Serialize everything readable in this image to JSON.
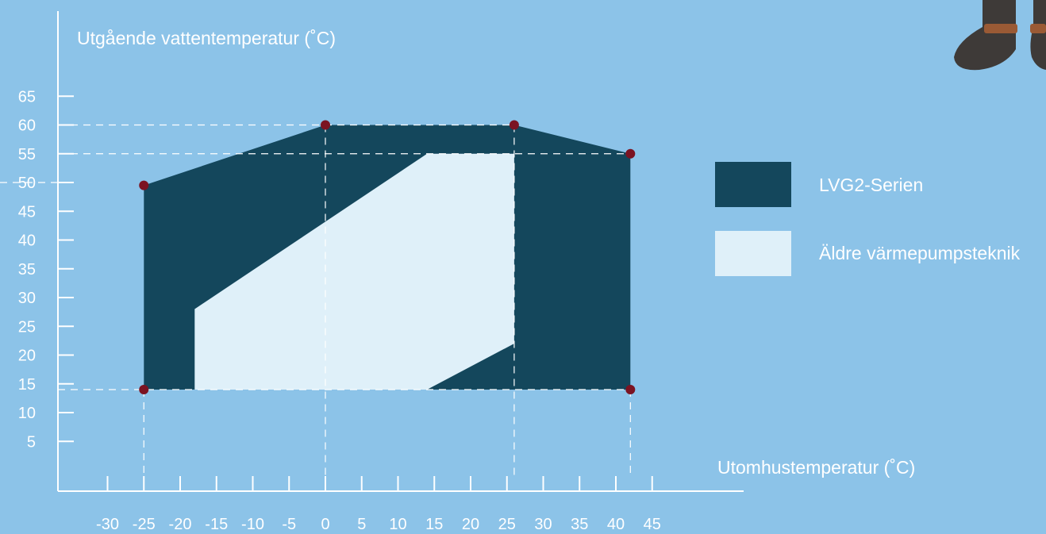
{
  "colors": {
    "background": "#8cc3e8",
    "envelope_new": "#14475c",
    "envelope_old": "#dff0f9",
    "point": "#7b1322",
    "axis": "#ffffff",
    "guide": "#ffffff"
  },
  "decor": {
    "icon": "boots-illustration-icon"
  },
  "chart_data": {
    "type": "area",
    "ylabel": "Utgående vattentemperatur  (˚C)",
    "xlabel": "Utomhustemperatur (˚C)",
    "x_ticks": [
      -30,
      -25,
      -20,
      -15,
      -10,
      -5,
      0,
      5,
      10,
      15,
      20,
      25,
      30,
      35,
      40,
      45
    ],
    "x_tick_labels": [
      "-30",
      "-25",
      "-20",
      "-15",
      "-10",
      "-5",
      "0",
      "5",
      "10",
      "15",
      "20",
      "25",
      "30",
      "35",
      "40",
      "45"
    ],
    "y_ticks": [
      5,
      10,
      15,
      20,
      25,
      30,
      35,
      40,
      45,
      50,
      55,
      60,
      65
    ],
    "y_tick_labels": [
      "5",
      "10",
      "15",
      "20",
      "25",
      "30",
      "35",
      "40",
      "45",
      "50",
      "55",
      "60",
      "65"
    ],
    "series": [
      {
        "name": "LVG2-Serien",
        "polygon": [
          [
            -25,
            14
          ],
          [
            -25,
            49.5
          ],
          [
            0,
            60
          ],
          [
            26,
            60
          ],
          [
            42,
            55
          ],
          [
            42,
            14
          ]
        ]
      },
      {
        "name": "Äldre värmepumpsteknik",
        "polygon": [
          [
            -18,
            14
          ],
          [
            -18,
            28
          ],
          [
            14,
            55
          ],
          [
            26,
            55
          ],
          [
            26,
            22
          ],
          [
            14,
            14
          ]
        ]
      }
    ],
    "points": [
      [
        -25,
        14
      ],
      [
        -25,
        49.5
      ],
      [
        0,
        60
      ],
      [
        26,
        60
      ],
      [
        42,
        55
      ],
      [
        42,
        14
      ]
    ],
    "guides": {
      "horizontal_y": [
        60,
        55,
        50,
        14
      ],
      "vertical_x": [
        -25,
        0,
        26,
        42
      ]
    },
    "legend_position": "right"
  }
}
